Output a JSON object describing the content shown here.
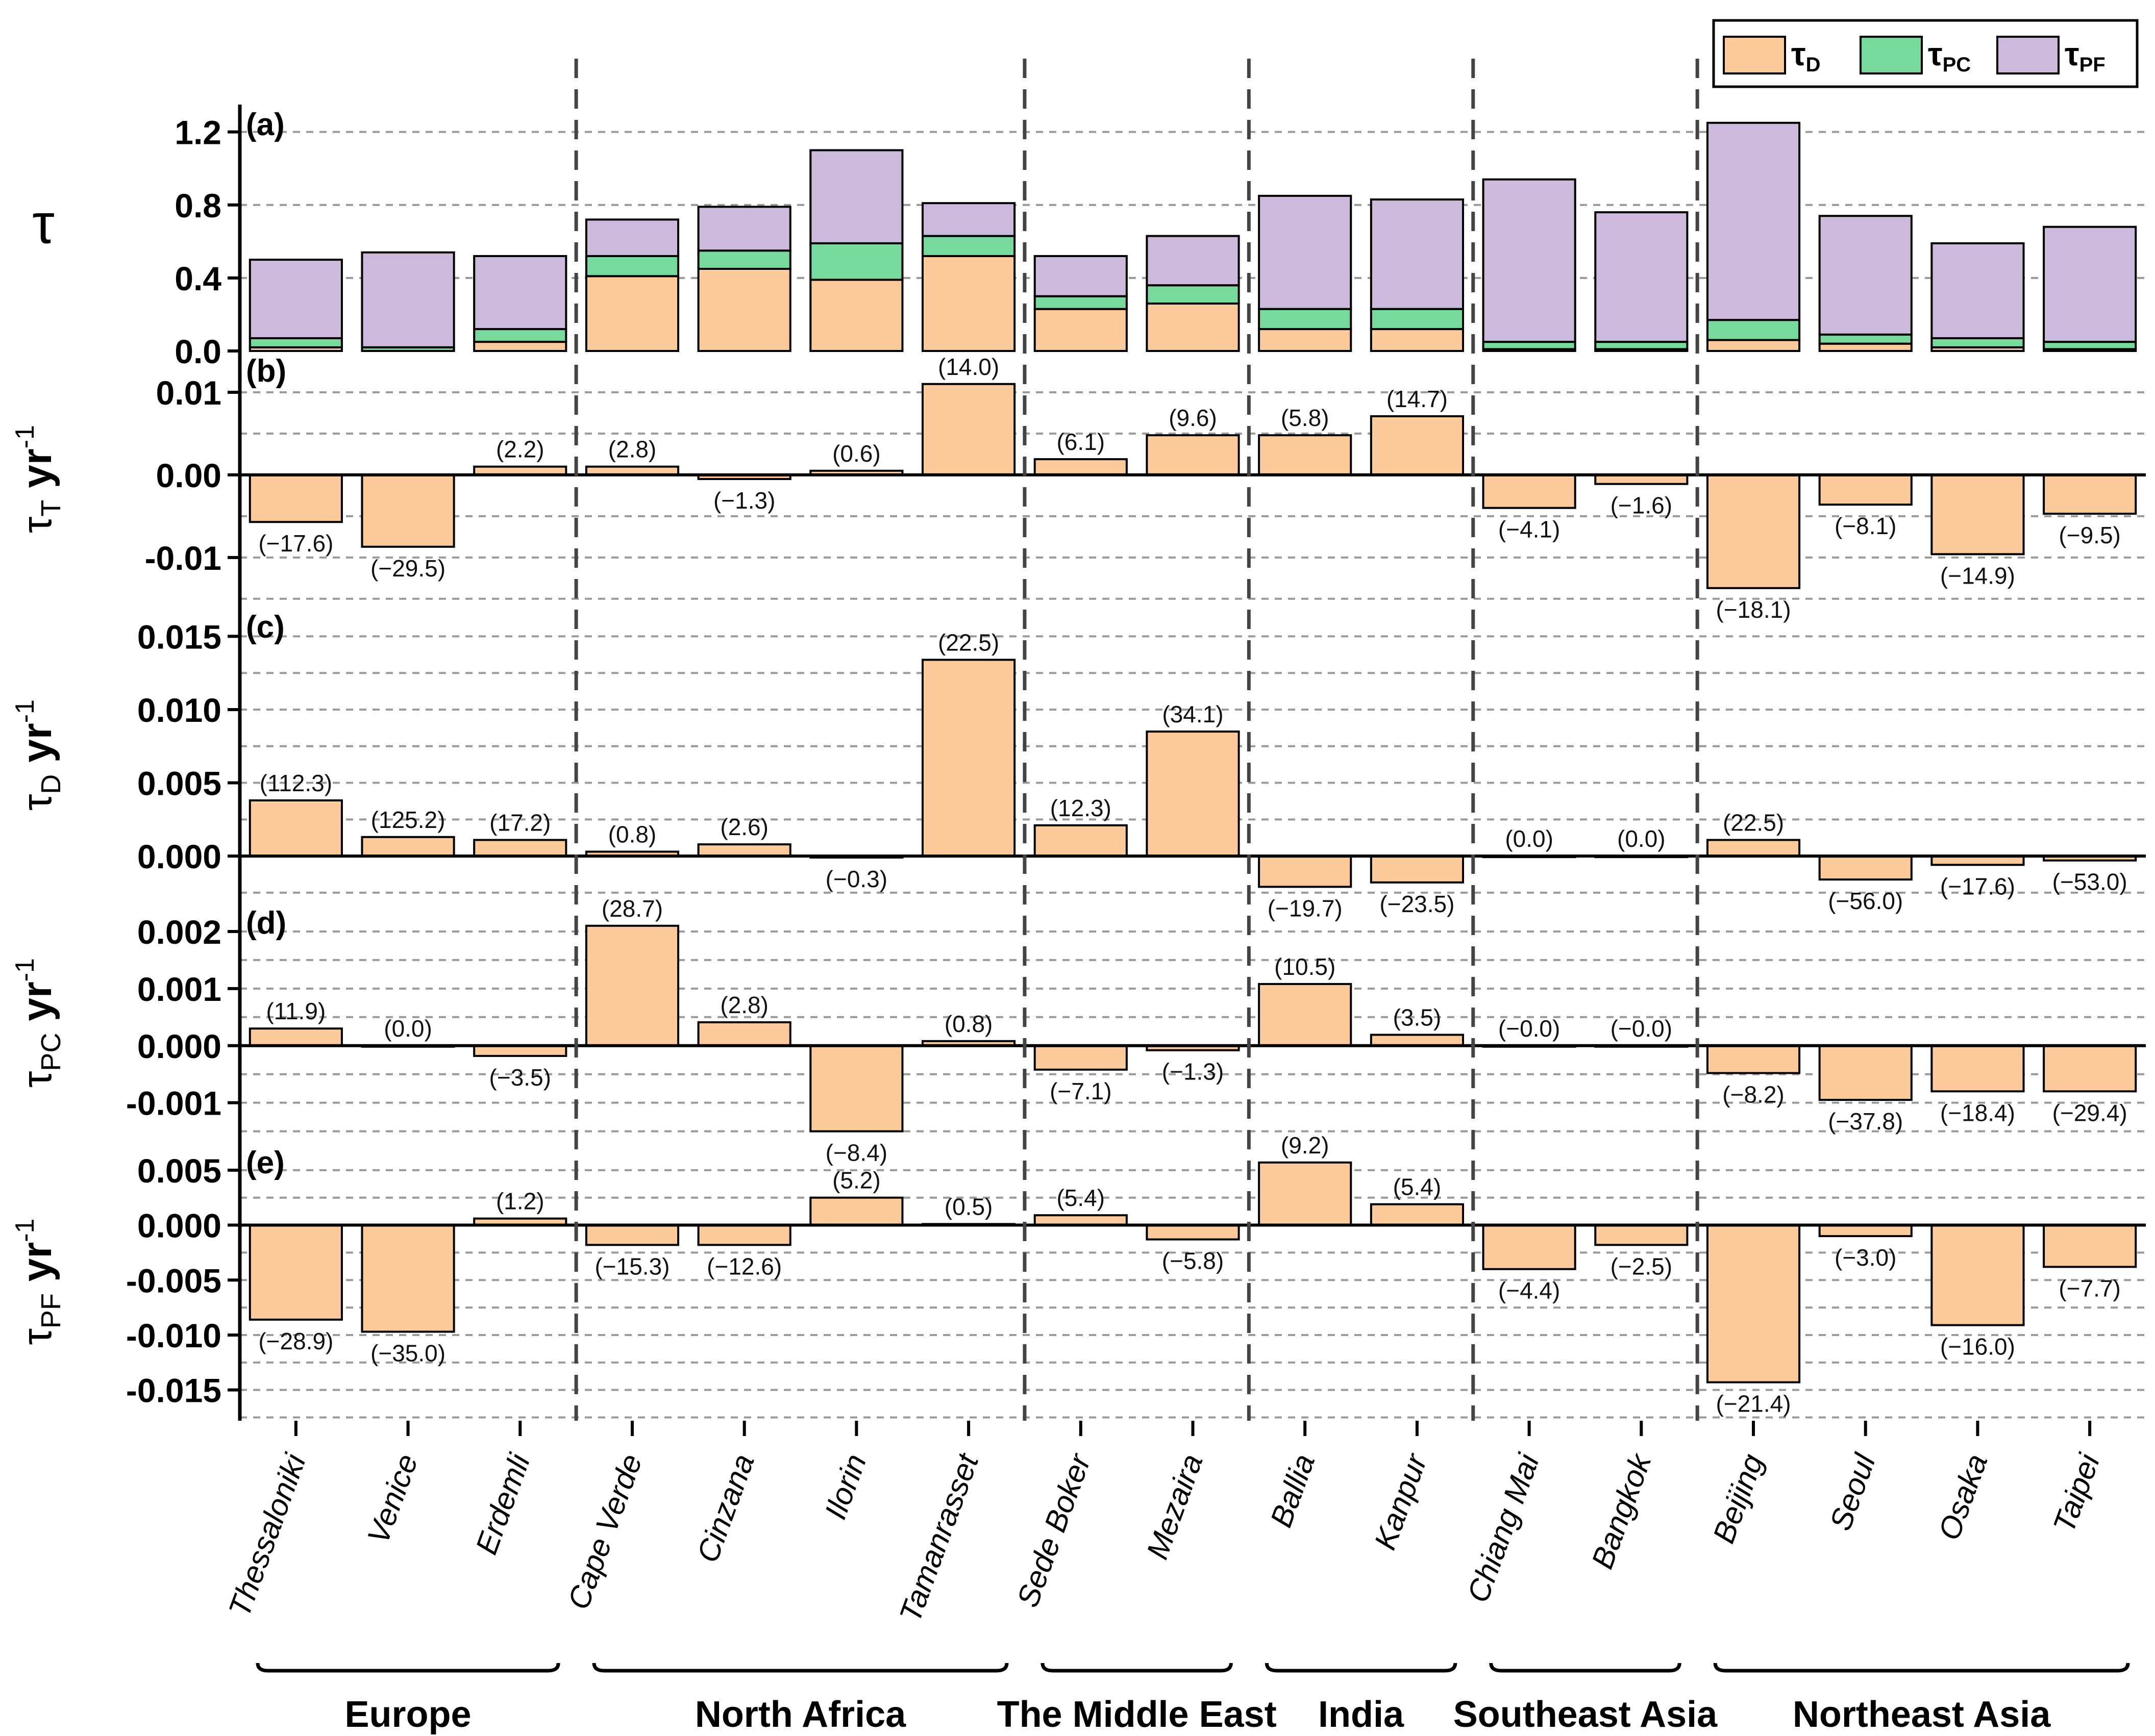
{
  "chart_data": {
    "type": "bar",
    "title": "",
    "legend": {
      "placement": "top-right",
      "entries": [
        {
          "key": "D",
          "label": "τ",
          "sub": "D",
          "color": "#FDCA9B"
        },
        {
          "key": "PC",
          "label": "τ",
          "sub": "PC",
          "color": "#77D99C"
        },
        {
          "key": "PF",
          "label": "τ",
          "sub": "PF",
          "color": "#CDB9DB"
        }
      ]
    },
    "categories": [
      "Thessaloniki",
      "Venice",
      "Erdemli",
      "Cape Verde",
      "Cinzana",
      "Ilorin",
      "Tamanrasset",
      "Sede Boker",
      "Mezaira",
      "Ballia",
      "Kanpur",
      "Chiang Mai",
      "Bangkok",
      "Beijing",
      "Seoul",
      "Osaka",
      "Taipei"
    ],
    "regions": [
      {
        "name": "Europe",
        "start": 0,
        "end": 2
      },
      {
        "name": "North Africa",
        "start": 3,
        "end": 6
      },
      {
        "name": "The Middle East",
        "start": 7,
        "end": 8
      },
      {
        "name": "India",
        "start": 9,
        "end": 10
      },
      {
        "name": "Southeast Asia",
        "start": 11,
        "end": 12
      },
      {
        "name": "Northeast Asia",
        "start": 13,
        "end": 16
      }
    ],
    "panels": [
      {
        "id": "a",
        "tag": "(a)",
        "type": "stacked-bar",
        "ylabel": {
          "main": "τ",
          "sub": "",
          "unit": ""
        },
        "ylim": [
          0,
          1.35
        ],
        "ticks": [
          0.0,
          0.4,
          0.8,
          1.2
        ],
        "tick_labels": [
          "0.0",
          "0.4",
          "0.8",
          "1.2"
        ],
        "grid": [
          0.4,
          0.8,
          1.2
        ],
        "series": [
          {
            "name": "τD",
            "key": "D",
            "values": [
              0.02,
              0.0,
              0.05,
              0.41,
              0.45,
              0.39,
              0.52,
              0.23,
              0.26,
              0.12,
              0.12,
              0.01,
              0.01,
              0.06,
              0.04,
              0.02,
              0.01
            ]
          },
          {
            "name": "τPC",
            "key": "PC",
            "values": [
              0.05,
              0.02,
              0.07,
              0.11,
              0.1,
              0.2,
              0.11,
              0.07,
              0.1,
              0.11,
              0.11,
              0.04,
              0.04,
              0.11,
              0.05,
              0.05,
              0.04
            ]
          },
          {
            "name": "τPF",
            "key": "PF",
            "values": [
              0.43,
              0.52,
              0.4,
              0.2,
              0.24,
              0.51,
              0.18,
              0.22,
              0.27,
              0.62,
              0.6,
              0.89,
              0.71,
              1.08,
              0.65,
              0.52,
              0.63
            ]
          }
        ]
      },
      {
        "id": "b",
        "tag": "(b)",
        "type": "bar",
        "ylabel": {
          "main": "τ",
          "sub": "T",
          "unit": " yr"
        },
        "ylim": [
          -0.016,
          0.015
        ],
        "ticks": [
          -0.01,
          0.0,
          0.01
        ],
        "tick_labels": [
          "-0.01",
          "0.00",
          "0.01"
        ],
        "grid": [
          -0.015,
          -0.01,
          -0.005,
          0.005,
          0.01
        ],
        "values": [
          -0.0057,
          -0.0087,
          0.001,
          0.001,
          -0.0005,
          0.0005,
          0.011,
          0.0019,
          0.0048,
          0.0048,
          0.0071,
          -0.004,
          -0.0011,
          -0.0137,
          -0.0036,
          -0.0096,
          -0.0047
        ],
        "labels": [
          "(−17.6)",
          "(−29.5)",
          "(2.2)",
          "(2.8)",
          "(−1.3)",
          "(0.6)",
          "(14.0)",
          "(6.1)",
          "(9.6)",
          "(5.8)",
          "(14.7)",
          "(−4.1)",
          "(−1.6)",
          "(−18.1)",
          "(−8.1)",
          "(−14.9)",
          "(−9.5)"
        ]
      },
      {
        "id": "c",
        "tag": "(c)",
        "type": "bar",
        "ylabel": {
          "main": "τ",
          "sub": "D",
          "unit": " yr"
        },
        "ylim": [
          -0.0032,
          0.017
        ],
        "ticks": [
          0.0,
          0.005,
          0.01,
          0.015
        ],
        "tick_labels": [
          "0.000",
          "0.005",
          "0.010",
          "0.015"
        ],
        "grid": [
          -0.0025,
          0.0025,
          0.005,
          0.0075,
          0.01,
          0.0125,
          0.015
        ],
        "values": [
          0.0038,
          0.0013,
          0.0011,
          0.0003,
          0.0008,
          -0.0001,
          0.0134,
          0.0021,
          0.0085,
          -0.0021,
          -0.0018,
          0.0,
          0.0,
          0.0011,
          -0.0016,
          -0.0006,
          -0.0003
        ],
        "labels": [
          "(112.3)",
          "(125.2)",
          "(17.2)",
          "(0.8)",
          "(2.6)",
          "(−0.3)",
          "(22.5)",
          "(12.3)",
          "(34.1)",
          "(−19.7)",
          "(−23.5)",
          "(0.0)",
          "(0.0)",
          "(22.5)",
          "(−56.0)",
          "(−17.6)",
          "(−53.0)"
        ]
      },
      {
        "id": "d",
        "tag": "(d)",
        "type": "bar",
        "ylabel": {
          "main": "τ",
          "sub": "PC",
          "unit": " yr"
        },
        "ylim": [
          -0.0017,
          0.0025
        ],
        "ticks": [
          -0.001,
          0.0,
          0.001,
          0.002
        ],
        "tick_labels": [
          "-0.001",
          "0.000",
          "0.001",
          "0.002"
        ],
        "grid": [
          -0.0015,
          -0.001,
          -0.0005,
          0.0005,
          0.001,
          0.0015,
          0.002
        ],
        "values": [
          0.0003,
          0.0,
          -0.00018,
          0.0021,
          0.00041,
          -0.0015,
          8e-05,
          -0.00042,
          -8e-05,
          0.00108,
          0.00019,
          0.0,
          0.0,
          -0.00048,
          -0.00095,
          -0.0008,
          -0.0008
        ],
        "labels": [
          "(11.9)",
          "(0.0)",
          "(−3.5)",
          "(28.7)",
          "(2.8)",
          "(−8.4)",
          "(0.8)",
          "(−7.1)",
          "(−1.3)",
          "(10.5)",
          "(3.5)",
          "(−0.0)",
          "(−0.0)",
          "(−8.2)",
          "(−37.8)",
          "(−18.4)",
          "(−29.4)"
        ]
      },
      {
        "id": "e",
        "tag": "(e)",
        "type": "bar",
        "ylabel": {
          "main": "τ",
          "sub": "PF",
          "unit": " yr"
        },
        "ylim": [
          -0.0178,
          0.0075
        ],
        "ticks": [
          -0.015,
          -0.01,
          -0.005,
          0.0,
          0.005
        ],
        "tick_labels": [
          "-0.015",
          "-0.010",
          "-0.005",
          "0.000",
          "0.005"
        ],
        "grid": [
          -0.0175,
          -0.015,
          -0.0125,
          -0.01,
          -0.0075,
          -0.005,
          -0.0025,
          0.0025,
          0.005
        ],
        "values": [
          -0.0086,
          -0.0097,
          0.0006,
          -0.0018,
          -0.0018,
          0.0025,
          0.0001,
          0.0009,
          -0.0013,
          0.0057,
          0.0019,
          -0.004,
          -0.0018,
          -0.0143,
          -0.001,
          -0.0091,
          -0.0038
        ],
        "labels": [
          "(−28.9)",
          "(−35.0)",
          "(1.2)",
          "(−15.3)",
          "(−12.6)",
          "(5.2)",
          "(0.5)",
          "(5.4)",
          "(−5.8)",
          "(9.2)",
          "(5.4)",
          "(−4.4)",
          "(−2.5)",
          "(−21.4)",
          "(−3.0)",
          "(−16.0)",
          "(−7.7)"
        ]
      }
    ],
    "unit_exponent": "-1"
  },
  "colors": {
    "d": "#FDCA9B",
    "pc": "#77D99C",
    "pf": "#CDB9DB",
    "axis": "#000000",
    "grid": "#9a9a9a"
  }
}
